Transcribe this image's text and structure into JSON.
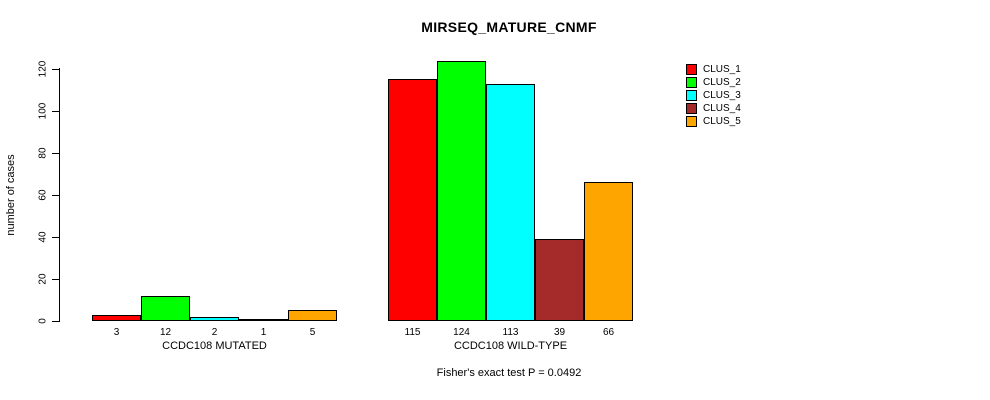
{
  "chart_data": {
    "type": "bar",
    "title": "MIRSEQ_MATURE_CNMF",
    "ylabel": "number of cases",
    "xlabel": "",
    "ylim": [
      0,
      124
    ],
    "yticks": [
      0,
      20,
      40,
      60,
      80,
      100,
      120
    ],
    "grid": false,
    "legend_position": "right-inside",
    "bar_border_color": "#000000",
    "background_color": "#FFFFFF",
    "categories": [
      "CCDC108 MUTATED",
      "CCDC108 WILD-TYPE"
    ],
    "series": [
      {
        "name": "CLUS_1",
        "color": "#FF0000",
        "values": [
          3,
          115
        ]
      },
      {
        "name": "CLUS_2",
        "color": "#00FF00",
        "values": [
          12,
          124
        ]
      },
      {
        "name": "CLUS_3",
        "color": "#00FFFF",
        "values": [
          2,
          113
        ]
      },
      {
        "name": "CLUS_4",
        "color": "#A52A2A",
        "values": [
          1,
          39
        ]
      },
      {
        "name": "CLUS_5",
        "color": "#FFA500",
        "values": [
          5,
          66
        ]
      }
    ],
    "bar_value_labels": [
      [
        3,
        12,
        2,
        1,
        5
      ],
      [
        115,
        124,
        113,
        39,
        66
      ]
    ],
    "footnote": "Fisher's exact test P = 0.0492"
  }
}
